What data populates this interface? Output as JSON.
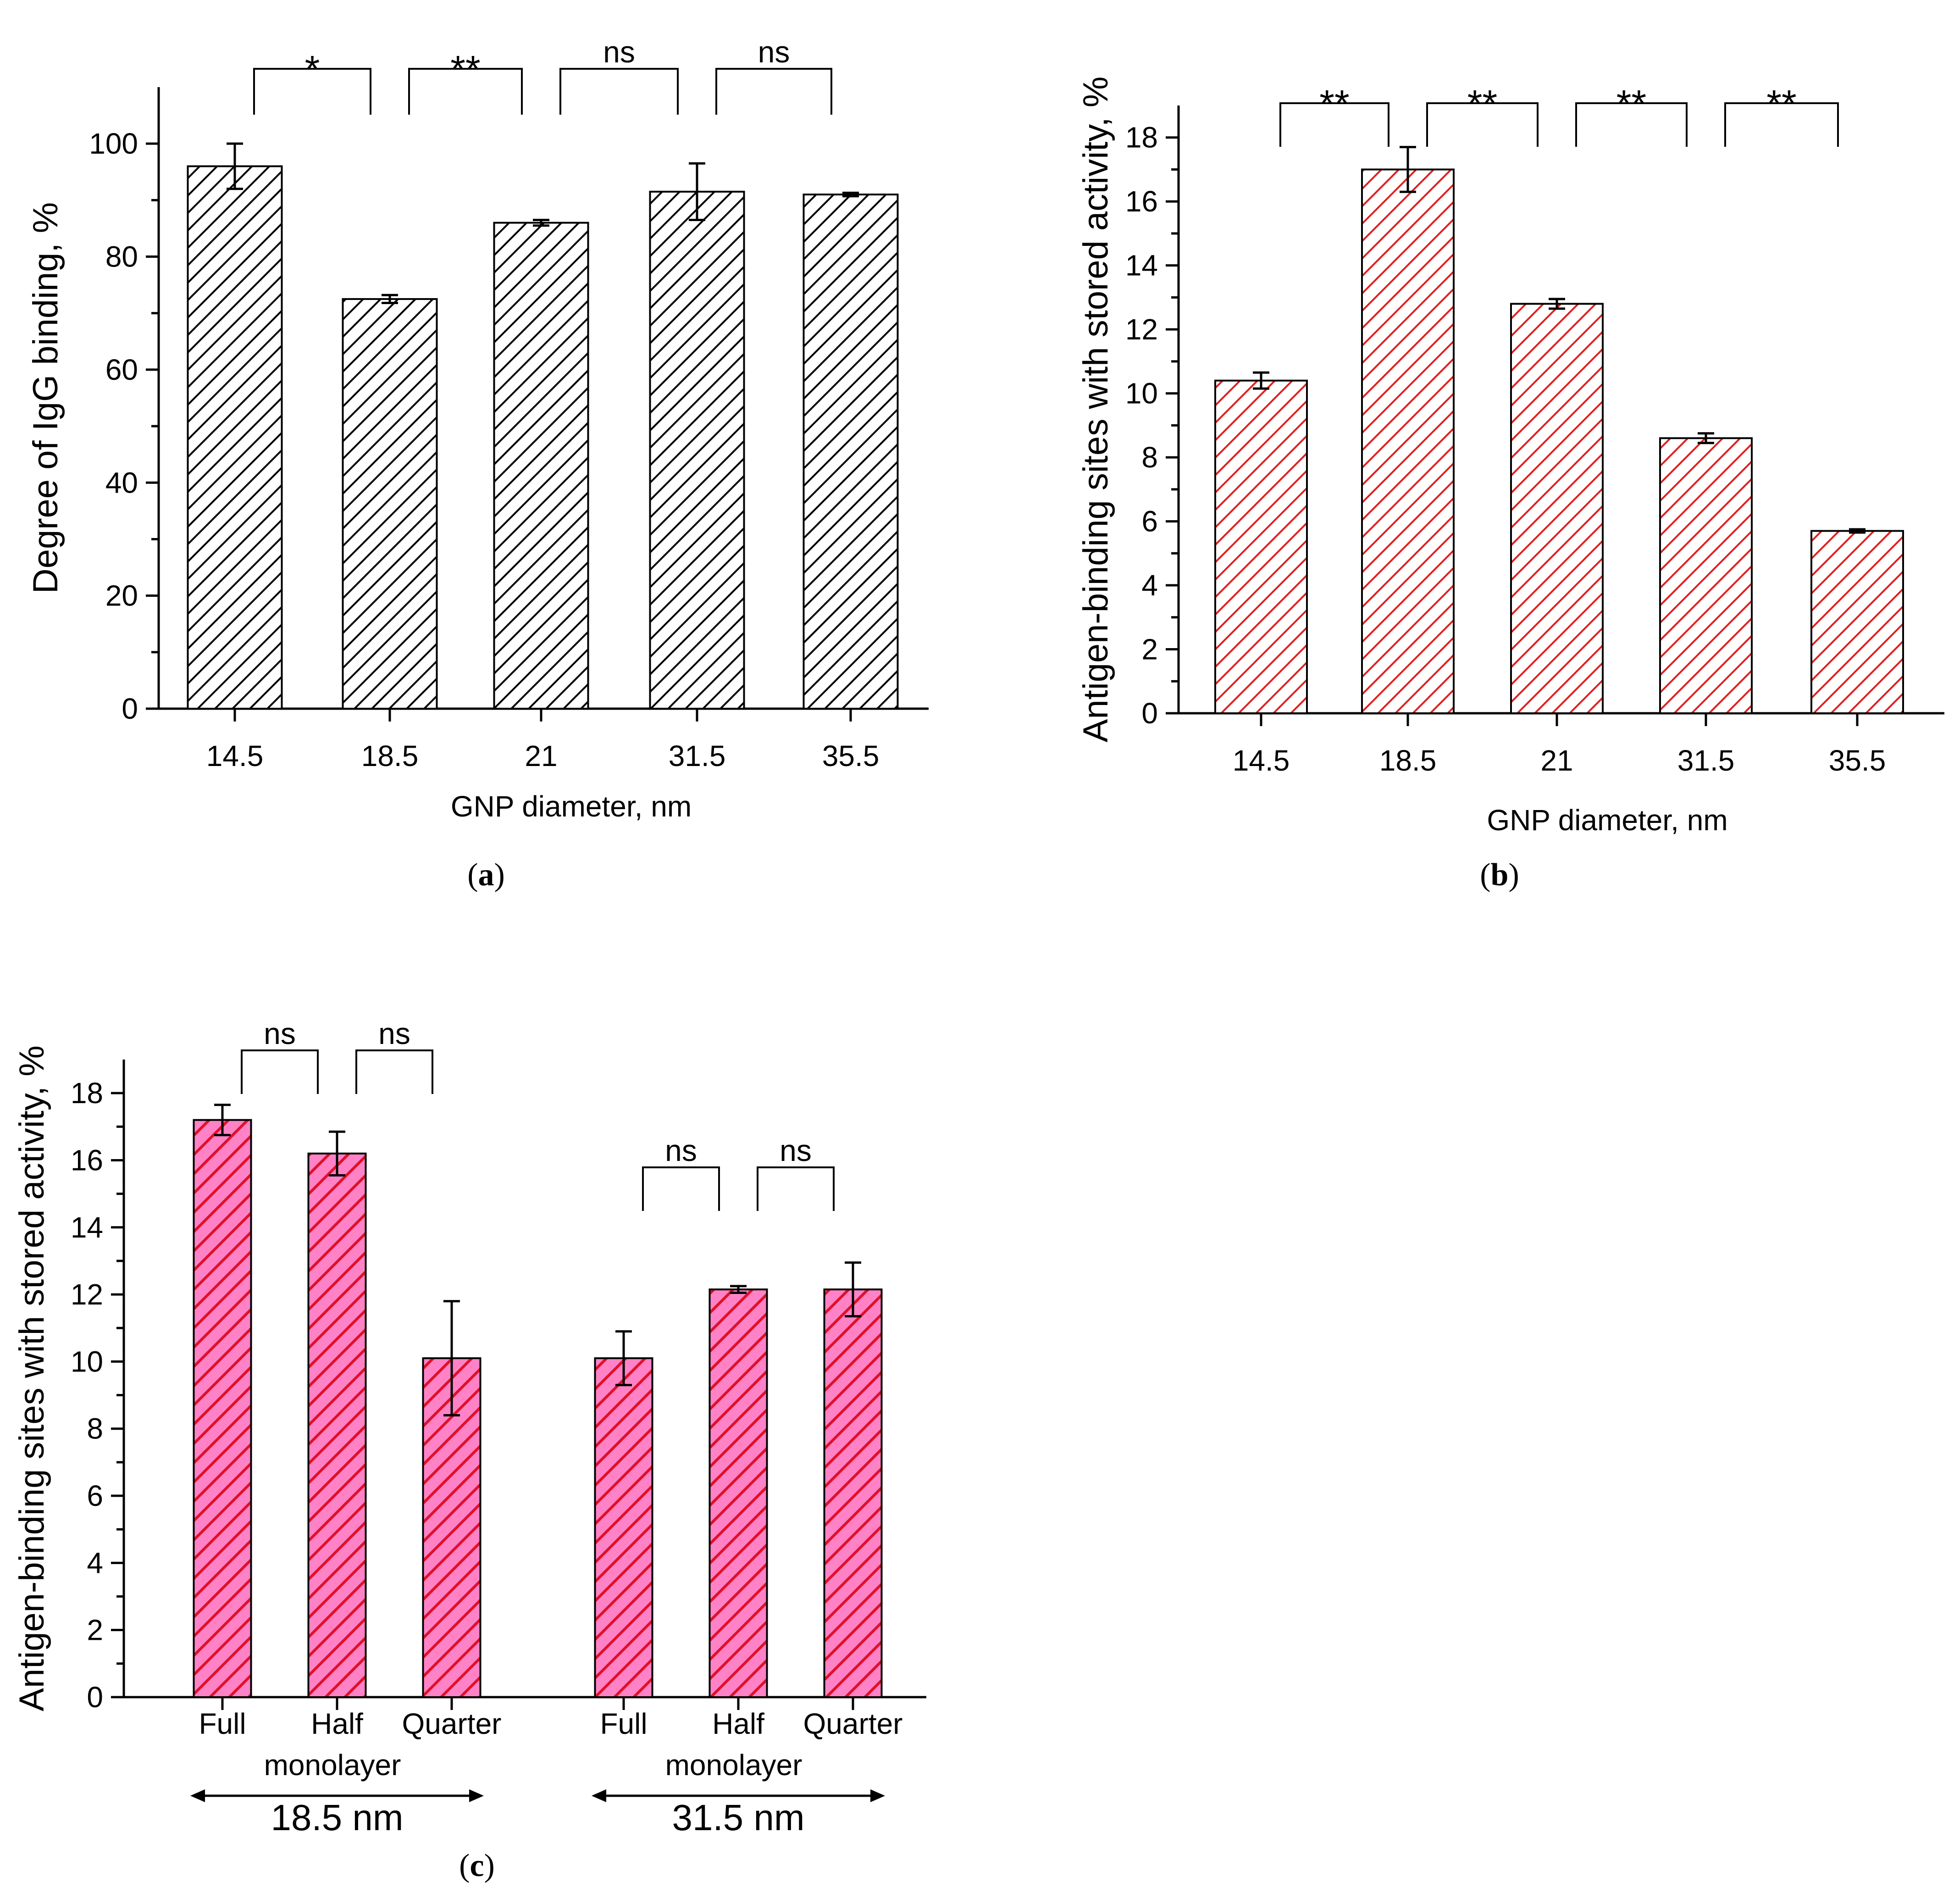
{
  "colors": {
    "axis": "#000000",
    "panel_a_hatch": "#000000",
    "panel_a_fill": "#ffffff",
    "panel_b_hatch": "#e02020",
    "panel_b_fill": "#ffffff",
    "panel_c_hatch": "#e0102a",
    "panel_c_fill": "#ff82c6"
  },
  "chart_data": [
    {
      "id": "a",
      "panel_label": "a",
      "type": "bar",
      "xlabel": "GNP diameter, nm",
      "ylabel": "Degree of IgG binding, %",
      "ylim": [
        0,
        110
      ],
      "yticks": [
        0,
        20,
        40,
        60,
        80,
        100
      ],
      "categories": [
        "14.5",
        "18.5",
        "21",
        "31.5",
        "35.5"
      ],
      "values": [
        96,
        72.5,
        86,
        91.5,
        91
      ],
      "errors": [
        4,
        0.7,
        0.5,
        5,
        0.3
      ],
      "significance": [
        {
          "from": 0,
          "to": 1,
          "label": "*"
        },
        {
          "from": 1,
          "to": 2,
          "label": "**"
        },
        {
          "from": 2,
          "to": 3,
          "label": "ns"
        },
        {
          "from": 3,
          "to": 4,
          "label": "ns"
        }
      ],
      "grid": false
    },
    {
      "id": "b",
      "panel_label": "b",
      "type": "bar",
      "xlabel": "GNP diameter, nm",
      "ylabel": "Antigen-binding sites with stored activity, %",
      "ylim": [
        0,
        19
      ],
      "yticks": [
        0,
        2,
        4,
        6,
        8,
        10,
        12,
        14,
        16,
        18
      ],
      "categories": [
        "14.5",
        "18.5",
        "21",
        "31.5",
        "35.5"
      ],
      "values": [
        10.4,
        17,
        12.8,
        8.6,
        5.7
      ],
      "errors": [
        0.25,
        0.7,
        0.15,
        0.15,
        0.05
      ],
      "significance": [
        {
          "from": 0,
          "to": 1,
          "label": "**"
        },
        {
          "from": 1,
          "to": 2,
          "label": "**"
        },
        {
          "from": 2,
          "to": 3,
          "label": "**"
        },
        {
          "from": 3,
          "to": 4,
          "label": "**"
        }
      ],
      "grid": false
    },
    {
      "id": "c",
      "panel_label": "c",
      "type": "bar",
      "xlabel": "",
      "ylabel": "Antigen-binding sites with stored activity, %",
      "ylim": [
        0,
        19
      ],
      "yticks": [
        0,
        2,
        4,
        6,
        8,
        10,
        12,
        14,
        16,
        18
      ],
      "groups": [
        {
          "name": "18.5 nm",
          "sublabel": "monolayer",
          "categories": [
            "Full",
            "Half",
            "Quarter"
          ],
          "values": [
            17.2,
            16.2,
            10.1
          ],
          "errors": [
            0.45,
            0.65,
            1.7
          ],
          "significance": [
            {
              "from": 0,
              "to": 1,
              "label": "ns"
            },
            {
              "from": 1,
              "to": 2,
              "label": "ns"
            }
          ]
        },
        {
          "name": "31.5 nm",
          "sublabel": "monolayer",
          "categories": [
            "Full",
            "Half",
            "Quarter"
          ],
          "values": [
            10.1,
            12.15,
            12.15
          ],
          "errors": [
            0.8,
            0.1,
            0.8
          ],
          "significance": [
            {
              "from": 0,
              "to": 1,
              "label": "ns"
            },
            {
              "from": 1,
              "to": 2,
              "label": "ns"
            }
          ]
        }
      ],
      "grid": false
    }
  ]
}
